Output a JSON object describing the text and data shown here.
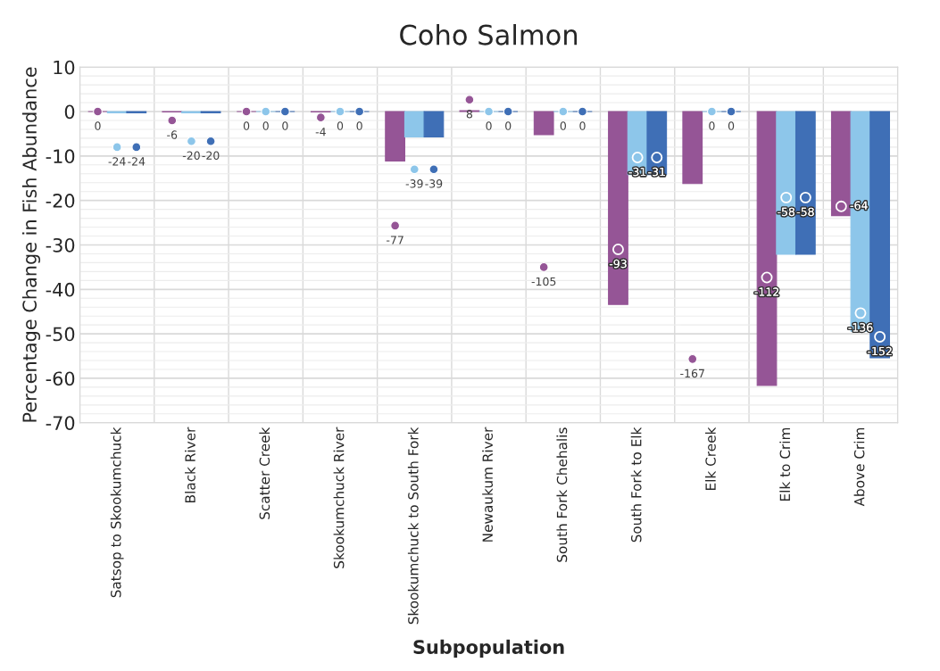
{
  "chart_data": {
    "type": "bar",
    "title": "Coho Salmon",
    "xlabel": "Subpopulation",
    "ylabel": "Percentage Change in Fish Abundance",
    "categories": [
      "Satsop to Skookumchuck",
      "Black River",
      "Scatter Creek",
      "Skookumchuck River",
      "Skookumchuck to South Fork",
      "Newaukum River",
      "South Fork Chehalis",
      "South Fork to Elk",
      "Elk Creek",
      "Elk to Crim",
      "Above Crim"
    ],
    "series": [
      {
        "color": "#955596",
        "values": [
          0,
          -0.1,
          0,
          -0.1,
          -11.1,
          0.2,
          -5.2,
          -43.4,
          -16.2,
          -61.6,
          -23.4
        ]
      },
      {
        "color": "#8dc6ea",
        "values": [
          -0.3,
          -0.3,
          0,
          0,
          -5.7,
          0,
          0,
          -14.2,
          0,
          -32.1,
          -49.4
        ]
      },
      {
        "color": "#3f6fb6",
        "values": [
          -0.3,
          -0.3,
          0,
          0,
          -5.7,
          0,
          0,
          -14.2,
          0,
          -32.1,
          -55.4
        ]
      },
      {
        "type": "scatter",
        "axis": "y2",
        "color": "#955596",
        "data_labels": true,
        "values": [
          0,
          -6,
          0,
          -4,
          -77,
          8,
          -105,
          -93,
          -167,
          -112,
          -64
        ]
      },
      {
        "type": "scatter",
        "axis": "y2",
        "color": "#8dc6ea",
        "data_labels": true,
        "values": [
          -24,
          -20,
          0,
          0,
          -39,
          0,
          0,
          -31,
          0,
          -58,
          -136
        ]
      },
      {
        "type": "scatter",
        "axis": "y2",
        "color": "#3f6fb6",
        "data_labels": true,
        "values": [
          -24,
          -20,
          0,
          0,
          -39,
          0,
          0,
          -31,
          0,
          -58,
          -152
        ]
      }
    ],
    "ylim": [
      -70,
      10
    ],
    "yticks": [
      -70,
      -60,
      -50,
      -40,
      -30,
      -20,
      -10,
      0,
      10
    ],
    "y2lim": [
      -210,
      30
    ],
    "tick_labels": "xy",
    "grid": true,
    "marker": "circle",
    "legend": false
  }
}
